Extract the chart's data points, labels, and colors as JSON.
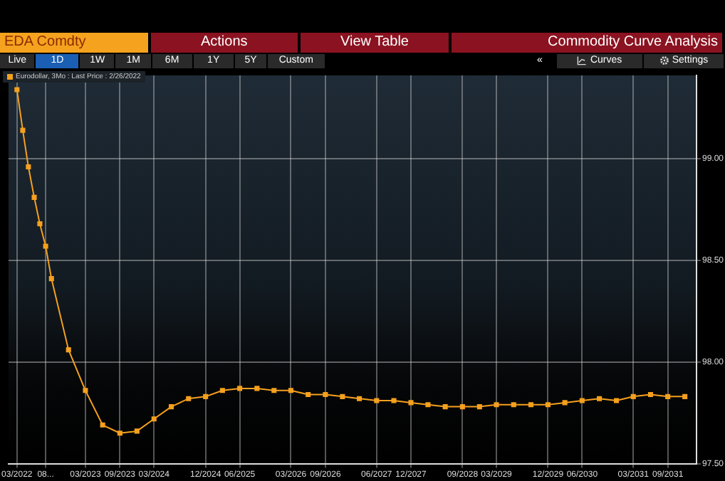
{
  "chart_data": {
    "type": "line",
    "title": "Commodity Curve Analysis",
    "annotations": [
      "EDA Comdty",
      "Actions",
      "View Table",
      "Live",
      "1D",
      "1W",
      "1M",
      "6M",
      "1Y",
      "5Y",
      "Custom",
      "«",
      "Curves",
      "Settings"
    ],
    "x": [
      "2022-03",
      "2022-04",
      "2022-05",
      "2022-06",
      "2022-07",
      "2022-08",
      "2022-09",
      "2022-12",
      "2023-03",
      "2023-06",
      "2023-09",
      "2023-12",
      "2024-03",
      "2024-06",
      "2024-09",
      "2024-12",
      "2025-03",
      "2025-06",
      "2025-09",
      "2025-12",
      "2026-03",
      "2026-06",
      "2026-09",
      "2026-12",
      "2027-03",
      "2027-06",
      "2027-09",
      "2027-12",
      "2028-03",
      "2028-06",
      "2028-09",
      "2028-12",
      "2029-03",
      "2029-06",
      "2029-09",
      "2029-12",
      "2030-03",
      "2030-06",
      "2030-09",
      "2030-12",
      "2031-03",
      "2031-06",
      "2031-09",
      "2031-12"
    ],
    "series": [
      {
        "name": "Eurodollar, 3Mo : Last Price : 2/26/2022",
        "color": "#f5a01e",
        "values": [
          99.34,
          99.14,
          98.96,
          98.81,
          98.68,
          98.57,
          98.41,
          98.06,
          97.86,
          97.69,
          97.65,
          97.66,
          97.72,
          97.78,
          97.82,
          97.83,
          97.86,
          97.87,
          97.87,
          97.86,
          97.86,
          97.84,
          97.84,
          97.83,
          97.82,
          97.81,
          97.81,
          97.8,
          97.79,
          97.78,
          97.78,
          97.78,
          97.79,
          97.79,
          97.79,
          97.79,
          97.8,
          97.81,
          97.82,
          97.81,
          97.83,
          97.84,
          97.83,
          97.83
        ]
      }
    ],
    "xlim": [
      "2022-01-15",
      "2032-02-01"
    ],
    "xticks": [
      {
        "value": "2022-03",
        "label": "03/2022"
      },
      {
        "value": "2022-08",
        "label": "08..."
      },
      {
        "value": "2023-03",
        "label": "03/2023"
      },
      {
        "value": "2023-09",
        "label": "09/2023"
      },
      {
        "value": "2024-03",
        "label": "03/2024"
      },
      {
        "value": "2024-12",
        "label": "12/2024"
      },
      {
        "value": "2025-06",
        "label": "06/2025"
      },
      {
        "value": "2026-03",
        "label": "03/2026"
      },
      {
        "value": "2026-09",
        "label": "09/2026"
      },
      {
        "value": "2027-06",
        "label": "06/2027"
      },
      {
        "value": "2027-12",
        "label": "12/2027"
      },
      {
        "value": "2028-09",
        "label": "09/2028"
      },
      {
        "value": "2029-03",
        "label": "03/2029"
      },
      {
        "value": "2029-12",
        "label": "12/2029"
      },
      {
        "value": "2030-06",
        "label": "06/2030"
      },
      {
        "value": "2031-03",
        "label": "03/2031"
      },
      {
        "value": "2031-09",
        "label": "09/2031"
      }
    ],
    "ylim": [
      97.5,
      99.41
    ],
    "yticks": [
      {
        "value": 97.5,
        "label": "97.50"
      },
      {
        "value": 98,
        "label": "98.00"
      },
      {
        "value": 98.5,
        "label": "98.50"
      },
      {
        "value": 99,
        "label": "99.00"
      }
    ],
    "grid": true,
    "legend": "top left",
    "marker": "square",
    "line_style": "solid"
  }
}
